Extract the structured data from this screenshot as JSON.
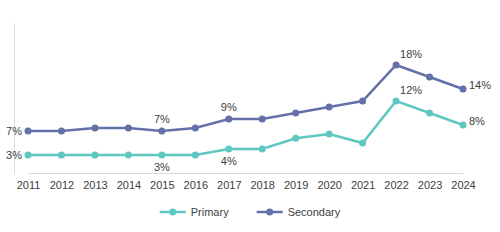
{
  "chart_data": {
    "type": "line",
    "categories": [
      "2011",
      "2012",
      "2013",
      "2014",
      "2015",
      "2016",
      "2017",
      "2018",
      "2019",
      "2020",
      "2021",
      "2022",
      "2023",
      "2024"
    ],
    "series": [
      {
        "name": "Primary",
        "color": "#5ec8c0",
        "marker": "circle",
        "values": [
          3,
          3,
          3,
          3,
          3,
          3,
          4,
          4,
          5.8,
          6.5,
          5,
          12,
          10,
          8
        ],
        "value_labels": [
          "3%",
          null,
          null,
          null,
          "3%",
          null,
          "4%",
          null,
          null,
          null,
          null,
          "12%",
          null,
          "8%"
        ]
      },
      {
        "name": "Secondary",
        "color": "#6470a8",
        "marker": "circle",
        "values": [
          7,
          7,
          7.5,
          7.5,
          7,
          7.5,
          9,
          9,
          10,
          11,
          12,
          18,
          16,
          14
        ],
        "value_labels": [
          "7%",
          null,
          null,
          null,
          "7%",
          null,
          "9%",
          null,
          null,
          null,
          null,
          "18%",
          null,
          "14%"
        ]
      }
    ],
    "ylim": [
      0,
      25
    ],
    "tick_labels": "x",
    "data_labels": true,
    "legend": "bottom"
  }
}
